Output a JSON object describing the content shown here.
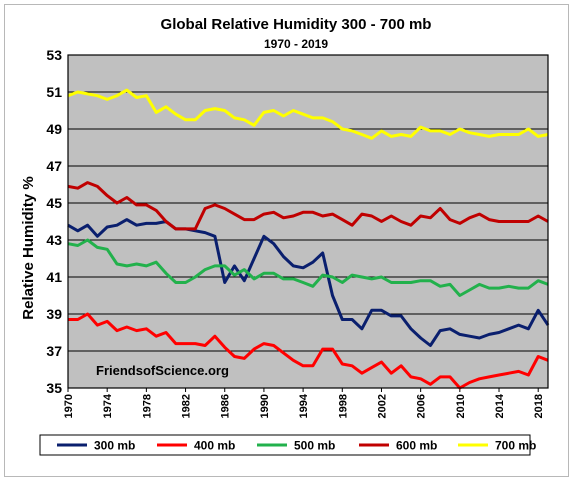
{
  "chart_data": {
    "type": "line",
    "title": "Global Relative Humidity 300 - 700 mb",
    "subtitle": "1970 - 2019",
    "ylabel": "Relative Humidity %",
    "xlabel": "",
    "annotation": "FriendsofScience.org",
    "xlim": [
      1970,
      2019
    ],
    "ylim": [
      35,
      53
    ],
    "y_ticks": [
      35,
      37,
      39,
      41,
      43,
      45,
      47,
      49,
      51,
      53
    ],
    "x_ticks": [
      1970,
      1974,
      1978,
      1982,
      1986,
      1990,
      1994,
      1998,
      2002,
      2006,
      2010,
      2014,
      2018
    ],
    "grid": "horizontal",
    "plot_background": "#c0c0c0",
    "legend_position": "bottom",
    "x": [
      1970,
      1971,
      1972,
      1973,
      1974,
      1975,
      1976,
      1977,
      1978,
      1979,
      1980,
      1981,
      1982,
      1983,
      1984,
      1985,
      1986,
      1987,
      1988,
      1989,
      1990,
      1991,
      1992,
      1993,
      1994,
      1995,
      1996,
      1997,
      1998,
      1999,
      2000,
      2001,
      2002,
      2003,
      2004,
      2005,
      2006,
      2007,
      2008,
      2009,
      2010,
      2011,
      2012,
      2013,
      2014,
      2015,
      2016,
      2017,
      2018,
      2019
    ],
    "series": [
      {
        "name": "300 mb",
        "color": "#0a1f6e",
        "values": [
          43.8,
          43.5,
          43.8,
          43.2,
          43.7,
          43.8,
          44.1,
          43.8,
          43.9,
          43.9,
          44.0,
          43.6,
          43.6,
          43.5,
          43.4,
          43.2,
          40.7,
          41.6,
          40.8,
          42.0,
          43.2,
          42.8,
          42.1,
          41.6,
          41.5,
          41.8,
          42.3,
          40.0,
          38.7,
          38.7,
          38.2,
          39.2,
          39.2,
          38.9,
          38.9,
          38.2,
          37.7,
          37.3,
          38.1,
          38.2,
          37.9,
          37.8,
          37.7,
          37.9,
          38.0,
          38.2,
          38.4,
          38.2,
          39.2,
          38.4
        ]
      },
      {
        "name": "400 mb",
        "color": "#ff0000",
        "values": [
          38.7,
          38.7,
          39.0,
          38.4,
          38.6,
          38.1,
          38.3,
          38.1,
          38.2,
          37.8,
          38.0,
          37.4,
          37.4,
          37.4,
          37.3,
          37.8,
          37.2,
          36.7,
          36.6,
          37.1,
          37.4,
          37.3,
          36.9,
          36.5,
          36.2,
          36.2,
          37.1,
          37.1,
          36.3,
          36.2,
          35.8,
          36.1,
          36.4,
          35.8,
          36.2,
          35.6,
          35.5,
          35.2,
          35.6,
          35.6,
          35.0,
          35.3,
          35.5,
          35.6,
          35.7,
          35.8,
          35.9,
          35.7,
          36.7,
          36.5
        ]
      },
      {
        "name": "500 mb",
        "color": "#22b14c",
        "values": [
          42.8,
          42.7,
          43.0,
          42.6,
          42.5,
          41.7,
          41.6,
          41.7,
          41.6,
          41.8,
          41.2,
          40.7,
          40.7,
          41.0,
          41.4,
          41.6,
          41.6,
          41.1,
          41.4,
          40.9,
          41.2,
          41.2,
          40.9,
          40.9,
          40.7,
          40.5,
          41.1,
          41.0,
          40.7,
          41.1,
          41.0,
          40.9,
          41.0,
          40.7,
          40.7,
          40.7,
          40.8,
          40.8,
          40.5,
          40.6,
          40.0,
          40.3,
          40.6,
          40.4,
          40.4,
          40.5,
          40.4,
          40.4,
          40.8,
          40.6
        ]
      },
      {
        "name": "600 mb",
        "color": "#c00000",
        "values": [
          45.9,
          45.8,
          46.1,
          45.9,
          45.4,
          45.0,
          45.3,
          44.9,
          44.9,
          44.6,
          44.0,
          43.6,
          43.6,
          43.6,
          44.7,
          44.9,
          44.7,
          44.4,
          44.1,
          44.1,
          44.4,
          44.5,
          44.2,
          44.3,
          44.5,
          44.5,
          44.3,
          44.4,
          44.1,
          43.8,
          44.4,
          44.3,
          44.0,
          44.3,
          44.0,
          43.8,
          44.3,
          44.2,
          44.7,
          44.1,
          43.9,
          44.2,
          44.4,
          44.1,
          44.0,
          44.0,
          44.0,
          44.0,
          44.3,
          44.0
        ]
      },
      {
        "name": "700 mb",
        "color": "#ffff00",
        "values": [
          50.8,
          51.0,
          50.9,
          50.8,
          50.6,
          50.8,
          51.1,
          50.7,
          50.8,
          49.9,
          50.2,
          49.8,
          49.5,
          49.5,
          50.0,
          50.1,
          50.0,
          49.6,
          49.5,
          49.2,
          49.9,
          50.0,
          49.7,
          50.0,
          49.8,
          49.6,
          49.6,
          49.4,
          49.0,
          48.9,
          48.7,
          48.5,
          48.9,
          48.6,
          48.7,
          48.6,
          49.1,
          48.9,
          48.9,
          48.7,
          49.0,
          48.8,
          48.7,
          48.6,
          48.7,
          48.7,
          48.7,
          49.0,
          48.6,
          48.7
        ]
      }
    ]
  }
}
